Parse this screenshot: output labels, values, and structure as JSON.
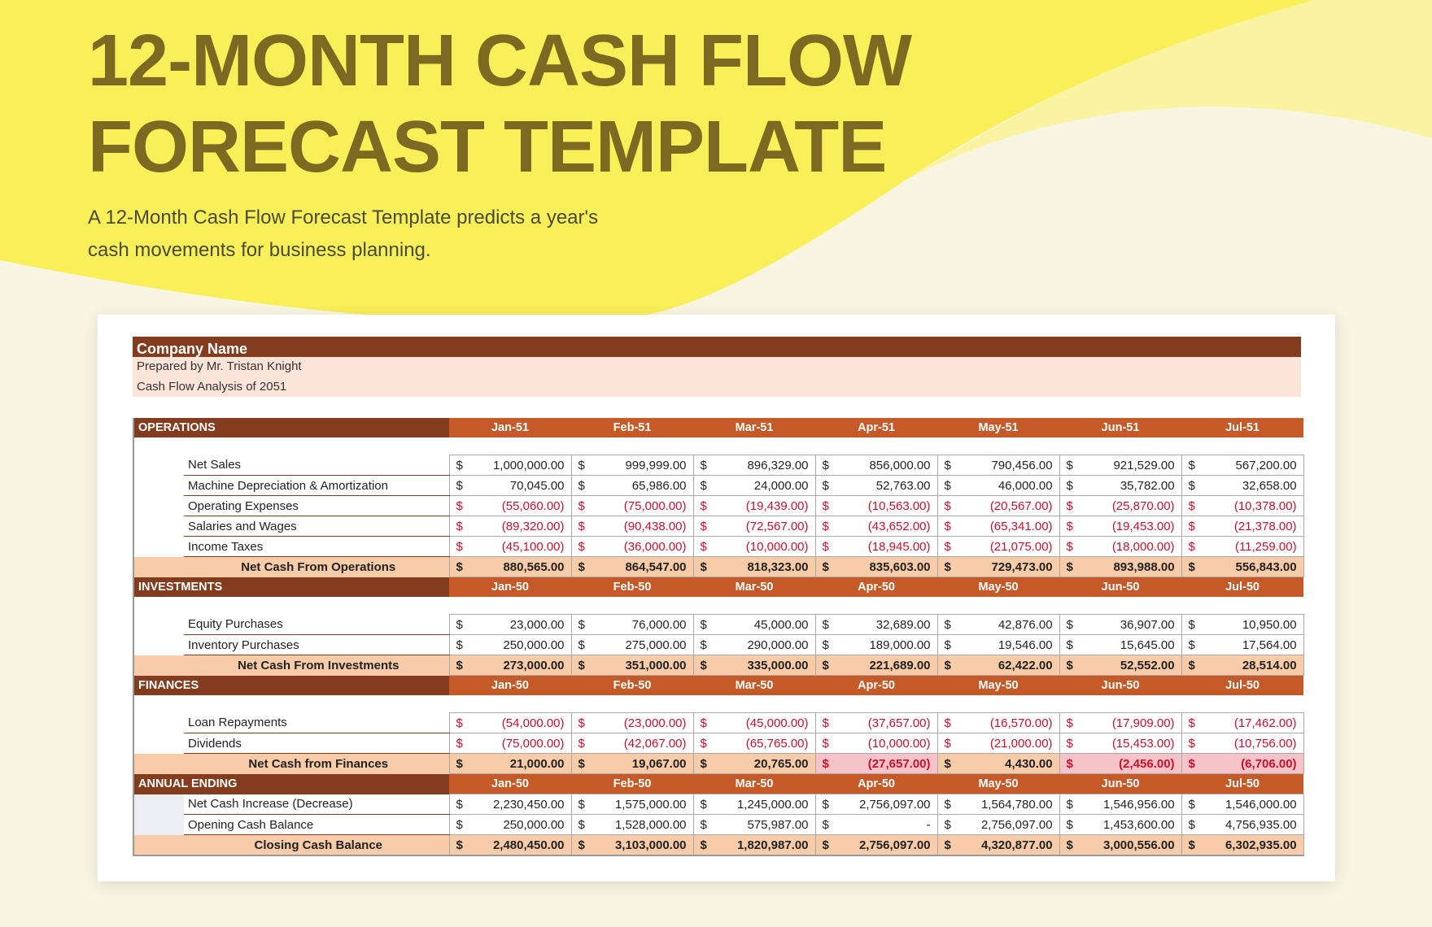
{
  "header": {
    "title_lines": [
      "12-MONTH CASH FLOW",
      "FORECAST TEMPLATE"
    ],
    "description": "A 12-Month Cash Flow Forecast Template predicts a year's cash movements for business planning."
  },
  "sheet": {
    "company": "Company Name",
    "prepared_by": "Prepared by Mr. Tristan Knight",
    "analysis": "Cash Flow Analysis of 2051",
    "currency": "$",
    "sections": [
      {
        "title": "OPERATIONS",
        "months": [
          "Jan-51",
          "Feb-51",
          "Mar-51",
          "Apr-51",
          "May-51",
          "Jun-51",
          "Jul-51"
        ],
        "rows": [
          {
            "label": "Net Sales",
            "values": [
              "1,000,000.00",
              "999,999.00",
              "896,329.00",
              "856,000.00",
              "790,456.00",
              "921,529.00",
              "567,200.00"
            ]
          },
          {
            "label": "Machine Depreciation & Amortization",
            "values": [
              "70,045.00",
              "65,986.00",
              "24,000.00",
              "52,763.00",
              "46,000.00",
              "35,782.00",
              "32,658.00"
            ]
          },
          {
            "label": "Operating Expenses",
            "values": [
              "(55,060.00)",
              "(75,000.00)",
              "(19,439.00)",
              "(10,563.00)",
              "(20,567.00)",
              "(25,870.00)",
              "(10,378.00)"
            ]
          },
          {
            "label": "Salaries and Wages",
            "values": [
              "(89,320.00)",
              "(90,438.00)",
              "(72,567.00)",
              "(43,652.00)",
              "(65,341.00)",
              "(19,453.00)",
              "(21,378.00)"
            ]
          },
          {
            "label": "Income Taxes",
            "values": [
              "(45,100.00)",
              "(36,000.00)",
              "(10,000.00)",
              "(18,945.00)",
              "(21,075.00)",
              "(18,000.00)",
              "(11,259.00)"
            ]
          }
        ],
        "total": {
          "label": "Net Cash From Operations",
          "values": [
            "880,565.00",
            "864,547.00",
            "818,323.00",
            "835,603.00",
            "729,473.00",
            "893,988.00",
            "556,843.00"
          ]
        }
      },
      {
        "title": "INVESTMENTS",
        "months": [
          "Jan-50",
          "Feb-50",
          "Mar-50",
          "Apr-50",
          "May-50",
          "Jun-50",
          "Jul-50"
        ],
        "rows": [
          {
            "label": "Equity Purchases",
            "values": [
              "23,000.00",
              "76,000.00",
              "45,000.00",
              "32,689.00",
              "42,876.00",
              "36,907.00",
              "10,950.00"
            ]
          },
          {
            "label": "Inventory Purchases",
            "values": [
              "250,000.00",
              "275,000.00",
              "290,000.00",
              "189,000.00",
              "19,546.00",
              "15,645.00",
              "17,564.00"
            ]
          }
        ],
        "total": {
          "label": "Net Cash From Investments",
          "values": [
            "273,000.00",
            "351,000.00",
            "335,000.00",
            "221,689.00",
            "62,422.00",
            "52,552.00",
            "28,514.00"
          ]
        }
      },
      {
        "title": "FINANCES",
        "months": [
          "Jan-50",
          "Feb-50",
          "Mar-50",
          "Apr-50",
          "May-50",
          "Jun-50",
          "Jul-50"
        ],
        "rows": [
          {
            "label": "Loan Repayments",
            "values": [
              "(54,000.00)",
              "(23,000.00)",
              "(45,000.00)",
              "(37,657.00)",
              "(16,570.00)",
              "(17,909.00)",
              "(17,462.00)"
            ]
          },
          {
            "label": "Dividends",
            "values": [
              "(75,000.00)",
              "(42,067.00)",
              "(65,765.00)",
              "(10,000.00)",
              "(21,000.00)",
              "(15,453.00)",
              "(10,756.00)"
            ]
          }
        ],
        "total": {
          "label": "Net Cash from Finances",
          "values": [
            "21,000.00",
            "19,067.00",
            "20,765.00",
            "(27,657.00)",
            "4,430.00",
            "(2,456.00)",
            "(6,706.00)"
          ]
        }
      },
      {
        "title": "ANNUAL ENDING",
        "months": [
          "Jan-50",
          "Feb-50",
          "Mar-50",
          "Apr-50",
          "May-50",
          "Jun-50",
          "Jul-50"
        ],
        "rows": [
          {
            "label": "Net Cash Increase (Decrease)",
            "values": [
              "2,230,450.00",
              "1,575,000.00",
              "1,245,000.00",
              "2,756,097.00",
              "1,564,780.00",
              "1,546,956.00",
              "1,546,000.00"
            ]
          },
          {
            "label": "Opening Cash Balance",
            "values": [
              "250,000.00",
              "1,528,000.00",
              "575,987.00",
              "-",
              "2,756,097.00",
              "1,453,600.00",
              "4,756,935.00"
            ]
          }
        ],
        "total": {
          "label": "Closing Cash Balance",
          "values": [
            "2,480,450.00",
            "3,103,000.00",
            "1,820,987.00",
            "2,756,097.00",
            "4,320,877.00",
            "3,000,556.00",
            "6,302,935.00"
          ]
        }
      }
    ]
  }
}
